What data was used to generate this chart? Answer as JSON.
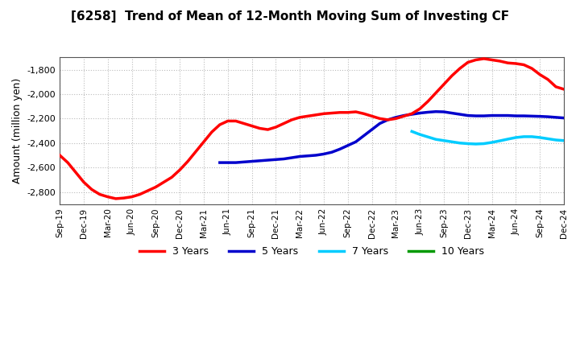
{
  "title": "[6258]  Trend of Mean of 12-Month Moving Sum of Investing CF",
  "ylabel": "Amount (million yen)",
  "background_color": "#ffffff",
  "plot_background": "#ffffff",
  "ylim": [
    -2900,
    -1700
  ],
  "yticks": [
    -2800,
    -2600,
    -2400,
    -2200,
    -2000,
    -1800
  ],
  "legend": [
    "3 Years",
    "5 Years",
    "7 Years",
    "10 Years"
  ],
  "legend_colors": [
    "#ff0000",
    "#0000cc",
    "#00ccff",
    "#009900"
  ],
  "series": {
    "3years": {
      "x": [
        0,
        1,
        2,
        3,
        4,
        5,
        6,
        7,
        8,
        9,
        10,
        11,
        12,
        13,
        14,
        15,
        16,
        17,
        18,
        19,
        20,
        21,
        22,
        23,
        24,
        25,
        26,
        27,
        28,
        29,
        30,
        31,
        32,
        33,
        34,
        35,
        36,
        37,
        38,
        39,
        40,
        41,
        42,
        43,
        44,
        45,
        46,
        47,
        48,
        49,
        50,
        51,
        52,
        53,
        54,
        55,
        56,
        57,
        58,
        59,
        60,
        61,
        62,
        63
      ],
      "y": [
        -2500,
        -2560,
        -2640,
        -2720,
        -2780,
        -2820,
        -2840,
        -2855,
        -2850,
        -2840,
        -2820,
        -2790,
        -2760,
        -2720,
        -2680,
        -2620,
        -2550,
        -2470,
        -2390,
        -2310,
        -2250,
        -2220,
        -2220,
        -2240,
        -2260,
        -2280,
        -2290,
        -2270,
        -2240,
        -2210,
        -2190,
        -2180,
        -2170,
        -2160,
        -2155,
        -2150,
        -2150,
        -2145,
        -2160,
        -2180,
        -2200,
        -2210,
        -2200,
        -2180,
        -2160,
        -2120,
        -2060,
        -1990,
        -1920,
        -1850,
        -1790,
        -1740,
        -1720,
        -1710,
        -1720,
        -1730,
        -1745,
        -1750,
        -1760,
        -1790,
        -1840,
        -1880,
        -1940,
        -1960
      ]
    },
    "5years": {
      "x": [
        20,
        21,
        22,
        23,
        24,
        25,
        26,
        27,
        28,
        29,
        30,
        31,
        32,
        33,
        34,
        35,
        36,
        37,
        38,
        39,
        40,
        41,
        42,
        43,
        44,
        45,
        46,
        47,
        48,
        49,
        50,
        51,
        52,
        53,
        54,
        55,
        56,
        57,
        58,
        59,
        60,
        61,
        62,
        63
      ],
      "y": [
        -2560,
        -2560,
        -2560,
        -2555,
        -2550,
        -2545,
        -2540,
        -2535,
        -2530,
        -2520,
        -2510,
        -2505,
        -2500,
        -2490,
        -2475,
        -2450,
        -2420,
        -2390,
        -2340,
        -2290,
        -2240,
        -2210,
        -2190,
        -2175,
        -2165,
        -2155,
        -2148,
        -2143,
        -2145,
        -2155,
        -2165,
        -2175,
        -2178,
        -2178,
        -2175,
        -2175,
        -2175,
        -2178,
        -2178,
        -2180,
        -2182,
        -2185,
        -2190,
        -2195
      ]
    },
    "7years": {
      "x": [
        44,
        45,
        46,
        47,
        48,
        49,
        50,
        51,
        52,
        53,
        54,
        55,
        56,
        57,
        58,
        59,
        60,
        61,
        62,
        63
      ],
      "y": [
        -2305,
        -2330,
        -2350,
        -2370,
        -2380,
        -2390,
        -2400,
        -2405,
        -2408,
        -2405,
        -2395,
        -2382,
        -2368,
        -2355,
        -2348,
        -2348,
        -2355,
        -2365,
        -2375,
        -2380
      ]
    },
    "10years": {
      "x": [],
      "y": []
    }
  },
  "xtick_labels": [
    "Sep-19",
    "Dec-19",
    "Mar-20",
    "Jun-20",
    "Sep-20",
    "Dec-20",
    "Mar-21",
    "Jun-21",
    "Sep-21",
    "Dec-21",
    "Mar-22",
    "Jun-22",
    "Sep-22",
    "Dec-22",
    "Mar-23",
    "Jun-23",
    "Sep-23",
    "Dec-23",
    "Mar-24",
    "Jun-24",
    "Sep-24",
    "Dec-24"
  ],
  "xtick_positions": [
    0,
    3,
    6,
    9,
    12,
    15,
    18,
    21,
    24,
    27,
    30,
    33,
    36,
    39,
    42,
    45,
    48,
    51,
    54,
    57,
    60,
    63
  ]
}
